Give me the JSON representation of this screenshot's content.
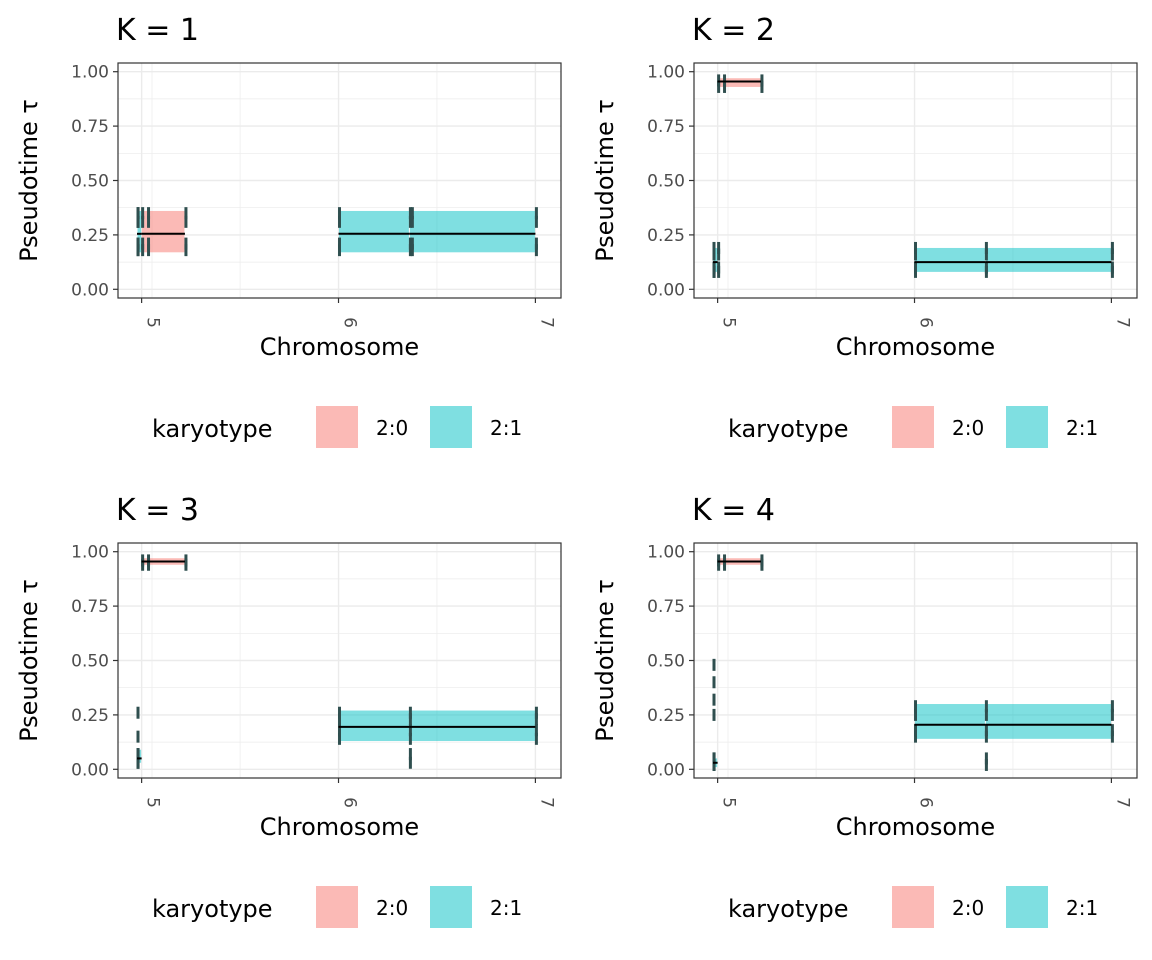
{
  "colors": {
    "k20": "#f8766d",
    "k21": "#00bfc4",
    "segment": "#2f4f4f",
    "median": "#000000"
  },
  "chart_data": [
    {
      "type": "bar",
      "title": "K = 1",
      "xlabel": "Chromosome",
      "ylabel": "Pseudotime τ",
      "ylim": [
        -0.04,
        1.04
      ],
      "xlim": [
        4.88,
        7.13
      ],
      "x_ticks": [
        "5",
        "6",
        "7"
      ],
      "x_tick_values": [
        5.0,
        6.0,
        7.0
      ],
      "y_ticks": [
        "0.00",
        "0.25",
        "0.50",
        "0.75",
        "1.00"
      ],
      "legend": {
        "title": "karyotype",
        "position": "bottom",
        "entries": [
          {
            "label": "2:0",
            "key": "k20"
          },
          {
            "label": "2:1",
            "key": "k21"
          }
        ]
      },
      "grid": true,
      "rects": [
        {
          "x0": 4.0,
          "x1": 5.0,
          "karyotype": "2:1",
          "lo": 0.17,
          "hi": 0.36,
          "median": 0.255
        },
        {
          "x0": 5.0,
          "x1": 5.22,
          "karyotype": "2:0",
          "lo": 0.17,
          "hi": 0.36,
          "median": 0.255
        },
        {
          "x0": 6.0,
          "x1": 6.36,
          "karyotype": "2:1",
          "lo": 0.17,
          "hi": 0.36,
          "median": 0.255
        },
        {
          "x0": 6.36,
          "x1": 7.0,
          "karyotype": "2:1",
          "lo": 0.17,
          "hi": 0.36,
          "median": 0.255
        }
      ],
      "ticks": [
        {
          "x": 4.0,
          "values": [
            0.18,
            0.21,
            0.31,
            0.35
          ]
        },
        {
          "x": 4.02,
          "values": [
            0.18,
            0.21,
            0.31,
            0.35
          ]
        },
        {
          "x": 5.0,
          "values": [
            0.18,
            0.21,
            0.31,
            0.35
          ]
        },
        {
          "x": 5.03,
          "values": [
            0.18,
            0.21,
            0.31,
            0.35
          ]
        },
        {
          "x": 5.22,
          "values": [
            0.18,
            0.21,
            0.31,
            0.35
          ]
        },
        {
          "x": 6.0,
          "values": [
            0.18,
            0.21,
            0.31,
            0.35
          ]
        },
        {
          "x": 6.36,
          "values": [
            0.18,
            0.21,
            0.31,
            0.35
          ]
        },
        {
          "x": 6.37,
          "values": [
            0.18,
            0.21,
            0.31,
            0.35
          ]
        },
        {
          "x": 7.0,
          "values": [
            0.18,
            0.21,
            0.31,
            0.35
          ]
        }
      ]
    },
    {
      "type": "bar",
      "title": "K = 2",
      "xlabel": "Chromosome",
      "ylabel": "Pseudotime τ",
      "ylim": [
        -0.04,
        1.04
      ],
      "xlim": [
        4.88,
        7.13
      ],
      "x_ticks": [
        "5",
        "6",
        "7"
      ],
      "x_tick_values": [
        5.0,
        6.0,
        7.0
      ],
      "y_ticks": [
        "0.00",
        "0.25",
        "0.50",
        "0.75",
        "1.00"
      ],
      "legend": {
        "title": "karyotype",
        "position": "bottom",
        "entries": [
          {
            "label": "2:0",
            "key": "k20"
          },
          {
            "label": "2:1",
            "key": "k21"
          }
        ]
      },
      "grid": true,
      "rects": [
        {
          "x0": 4.0,
          "x1": 5.0,
          "karyotype": "2:1",
          "lo": 0.08,
          "hi": 0.19,
          "median": 0.125
        },
        {
          "x0": 5.0,
          "x1": 5.22,
          "karyotype": "2:0",
          "lo": 0.93,
          "hi": 0.97,
          "median": 0.955
        },
        {
          "x0": 6.0,
          "x1": 6.36,
          "karyotype": "2:1",
          "lo": 0.08,
          "hi": 0.19,
          "median": 0.125
        },
        {
          "x0": 6.36,
          "x1": 7.0,
          "karyotype": "2:1",
          "lo": 0.08,
          "hi": 0.19,
          "median": 0.125
        }
      ],
      "ticks": [
        {
          "x": 4.0,
          "values": [
            0.08,
            0.1,
            0.16,
            0.19
          ]
        },
        {
          "x": 4.02,
          "values": [
            0.08,
            0.1
          ]
        },
        {
          "x": 5.0,
          "values": [
            0.08,
            0.1,
            0.16,
            0.19,
            0.93,
            0.96
          ]
        },
        {
          "x": 5.03,
          "values": [
            0.93,
            0.96
          ]
        },
        {
          "x": 5.22,
          "values": [
            0.93,
            0.96
          ]
        },
        {
          "x": 6.0,
          "values": [
            0.08,
            0.1,
            0.16,
            0.19
          ]
        },
        {
          "x": 6.36,
          "values": [
            0.08,
            0.1,
            0.16,
            0.19
          ]
        },
        {
          "x": 7.0,
          "values": [
            0.08,
            0.1,
            0.16,
            0.19
          ]
        }
      ]
    },
    {
      "type": "bar",
      "title": "K = 3",
      "xlabel": "Chromosome",
      "ylabel": "Pseudotime τ",
      "ylim": [
        -0.04,
        1.04
      ],
      "xlim": [
        4.88,
        7.13
      ],
      "x_ticks": [
        "5",
        "6",
        "7"
      ],
      "x_tick_values": [
        5.0,
        6.0,
        7.0
      ],
      "y_ticks": [
        "0.00",
        "0.25",
        "0.50",
        "0.75",
        "1.00"
      ],
      "legend": {
        "title": "karyotype",
        "position": "bottom",
        "entries": [
          {
            "label": "2:0",
            "key": "k20"
          },
          {
            "label": "2:1",
            "key": "k21"
          }
        ]
      },
      "grid": true,
      "rects": [
        {
          "x0": 4.0,
          "x1": 5.0,
          "karyotype": "2:1",
          "lo": 0.03,
          "hi": 0.09,
          "median": 0.05
        },
        {
          "x0": 5.0,
          "x1": 5.22,
          "karyotype": "2:0",
          "lo": 0.94,
          "hi": 0.97,
          "median": 0.955
        },
        {
          "x0": 6.0,
          "x1": 6.36,
          "karyotype": "2:1",
          "lo": 0.13,
          "hi": 0.27,
          "median": 0.195
        },
        {
          "x0": 6.36,
          "x1": 7.0,
          "karyotype": "2:1",
          "lo": 0.13,
          "hi": 0.27,
          "median": 0.195
        }
      ],
      "ticks": [
        {
          "x": 4.0,
          "values": [
            0.03,
            0.07,
            0.15,
            0.26
          ]
        },
        {
          "x": 4.02,
          "values": [
            0.03,
            0.07
          ]
        },
        {
          "x": 5.0,
          "values": [
            0.94,
            0.96
          ]
        },
        {
          "x": 5.03,
          "values": [
            0.94,
            0.96
          ]
        },
        {
          "x": 5.22,
          "values": [
            0.94,
            0.96
          ]
        },
        {
          "x": 6.0,
          "values": [
            0.14,
            0.18,
            0.23,
            0.26
          ]
        },
        {
          "x": 6.36,
          "values": [
            0.03,
            0.07,
            0.14,
            0.18,
            0.23,
            0.26
          ]
        },
        {
          "x": 7.0,
          "values": [
            0.14,
            0.18,
            0.23,
            0.26
          ]
        }
      ]
    },
    {
      "type": "bar",
      "title": "K = 4",
      "xlabel": "Chromosome",
      "ylabel": "Pseudotime τ",
      "ylim": [
        -0.04,
        1.04
      ],
      "xlim": [
        4.88,
        7.13
      ],
      "x_ticks": [
        "5",
        "6",
        "7"
      ],
      "x_tick_values": [
        5.0,
        6.0,
        7.0
      ],
      "y_ticks": [
        "0.00",
        "0.25",
        "0.50",
        "0.75",
        "1.00"
      ],
      "legend": {
        "title": "karyotype",
        "position": "bottom",
        "entries": [
          {
            "label": "2:0",
            "key": "k20"
          },
          {
            "label": "2:1",
            "key": "k21"
          }
        ]
      },
      "grid": true,
      "rects": [
        {
          "x0": 4.0,
          "x1": 5.0,
          "karyotype": "2:1",
          "lo": 0.01,
          "hi": 0.05,
          "median": 0.03
        },
        {
          "x0": 5.0,
          "x1": 5.22,
          "karyotype": "2:0",
          "lo": 0.94,
          "hi": 0.97,
          "median": 0.955
        },
        {
          "x0": 6.0,
          "x1": 6.36,
          "karyotype": "2:1",
          "lo": 0.14,
          "hi": 0.3,
          "median": 0.205
        },
        {
          "x0": 6.36,
          "x1": 7.0,
          "karyotype": "2:1",
          "lo": 0.14,
          "hi": 0.3,
          "median": 0.205
        }
      ],
      "ticks": [
        {
          "x": 4.0,
          "values": [
            0.02,
            0.05,
            0.25,
            0.32,
            0.4,
            0.48
          ]
        },
        {
          "x": 4.02,
          "values": [
            0.02,
            0.05
          ]
        },
        {
          "x": 5.0,
          "values": [
            0.94,
            0.96
          ]
        },
        {
          "x": 5.03,
          "values": [
            0.94,
            0.96
          ]
        },
        {
          "x": 5.22,
          "values": [
            0.94,
            0.96
          ]
        },
        {
          "x": 6.0,
          "values": [
            0.15,
            0.18,
            0.25,
            0.29
          ]
        },
        {
          "x": 6.36,
          "values": [
            0.02,
            0.05,
            0.15,
            0.18,
            0.25,
            0.29
          ]
        },
        {
          "x": 7.0,
          "values": [
            0.15,
            0.18,
            0.25,
            0.29
          ]
        }
      ]
    }
  ]
}
